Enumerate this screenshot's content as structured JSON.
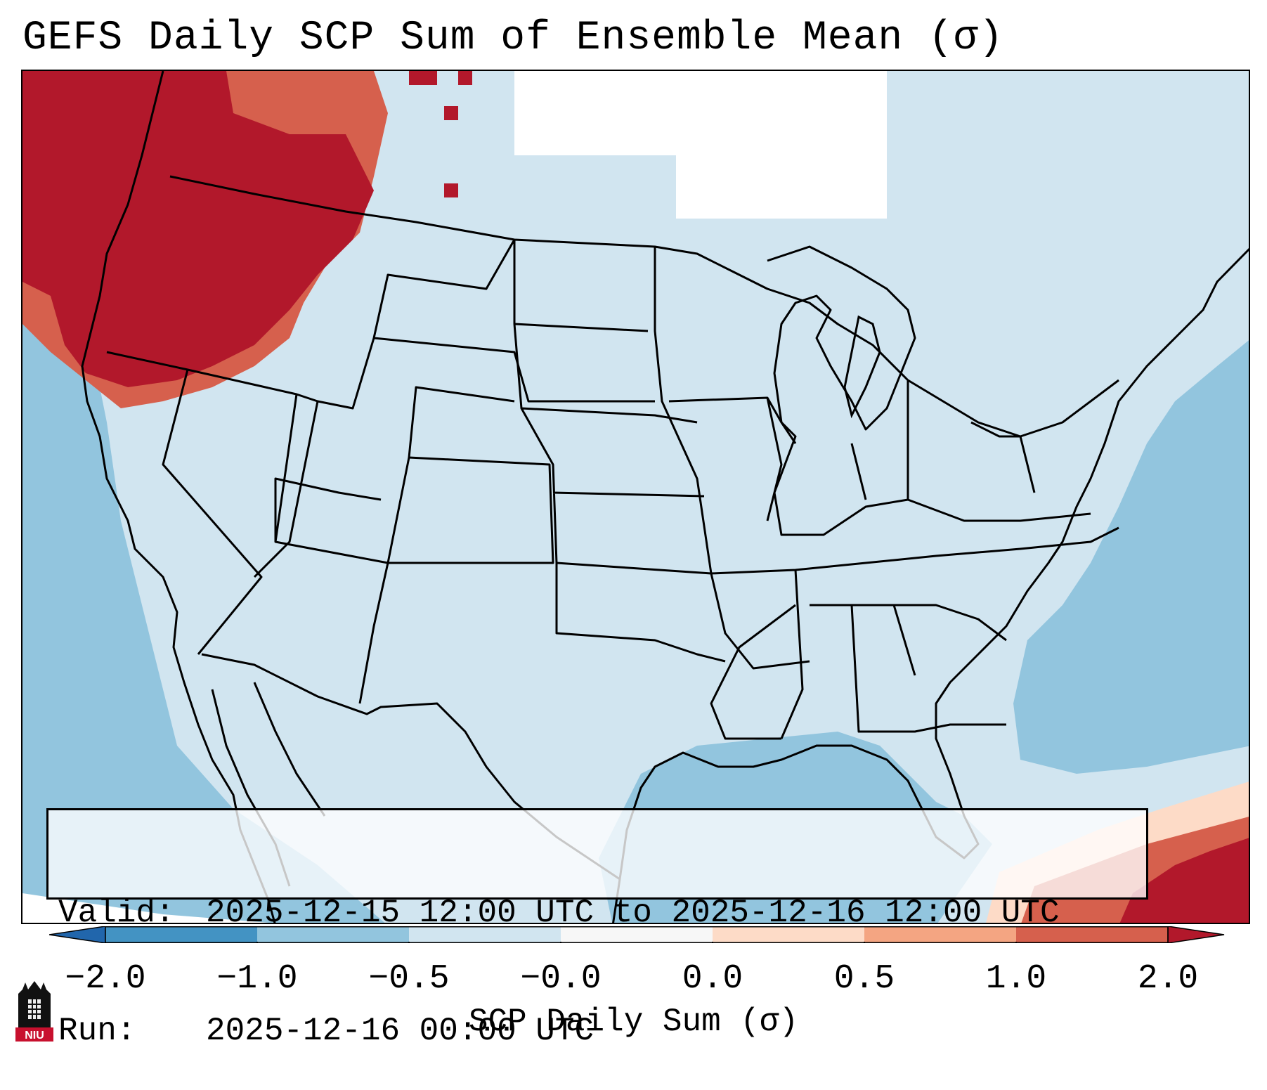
{
  "title": "GEFS Daily SCP Sum of Ensemble Mean (σ)",
  "info": {
    "valid_label": "Valid:",
    "valid_value": "2025-12-15 12:00 UTC to 2025-12-16 12:00 UTC",
    "run_label": "Run:",
    "run_value": "2025-12-16 00:00 UTC"
  },
  "colorbar": {
    "title": "SCP Daily Sum (σ)",
    "ticks": [
      "−2.0",
      "−1.0",
      "−0.5",
      "−0.0",
      "0.0",
      "0.5",
      "1.0",
      "2.0"
    ],
    "colors": [
      "#4393c3",
      "#92c5de",
      "#d1e5f0",
      "#f7f7f7",
      "#fddbc7",
      "#f4a582",
      "#d6604d",
      "#b2182b"
    ],
    "extend_low": "#2166ac",
    "extend_high": "#b2182b"
  },
  "logo": {
    "text": "NIU",
    "color": "#c8102e"
  },
  "map": {
    "background": "#d1e5f0",
    "ocean": "#92c5de",
    "neutral": "#ffffff",
    "positive_high": "#b2182b",
    "positive_mid": "#d6604d",
    "positive_low": "#f4a582",
    "positive_faint": "#fddbc7"
  }
}
